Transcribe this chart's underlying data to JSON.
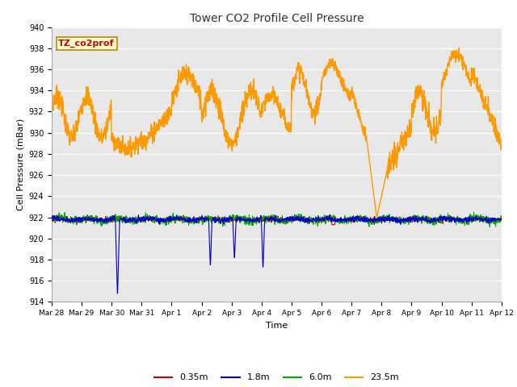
{
  "title": "Tower CO2 Profile Cell Pressure",
  "xlabel": "Time",
  "ylabel": "Cell Pressure (mBar)",
  "ylim": [
    914,
    940
  ],
  "yticks": [
    914,
    916,
    918,
    920,
    922,
    924,
    926,
    928,
    930,
    932,
    934,
    936,
    938,
    940
  ],
  "fig_bg": "#ffffff",
  "plot_bg": "#e8e8e8",
  "grid_color": "#ffffff",
  "legend_colors": [
    "#cc0000",
    "#0000cc",
    "#00aa00",
    "#ff9900"
  ],
  "annotation_text": "TZ_co2prof",
  "annotation_bg": "#ffffcc",
  "annotation_border": "#bb8800",
  "annotation_text_color": "#cc0000",
  "xtick_labels": [
    "Mar 28",
    "Mar 29",
    "Mar 30",
    "Mar 31",
    "Apr 1",
    "Apr 2",
    "Apr 3",
    "Apr 4",
    "Apr 5",
    "Apr 6",
    "Apr 7",
    "Apr 8",
    "Apr 9",
    "Apr 10",
    "Apr 11",
    "Apr 12"
  ],
  "legend_labels": [
    "0.35m",
    "1.8m",
    "6.0m",
    "23.5m"
  ]
}
